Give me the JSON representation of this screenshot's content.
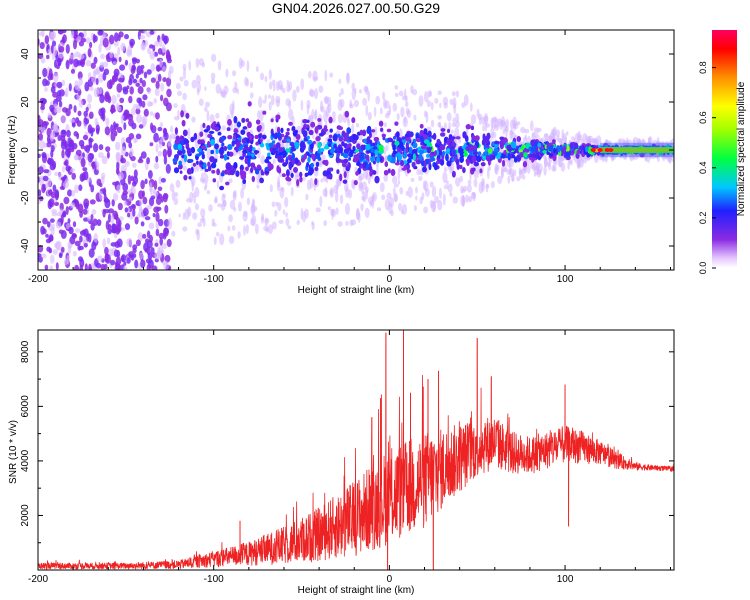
{
  "title": "GN04.2026.027.00.50.G29",
  "chart_data": [
    {
      "type": "heatmap",
      "name": "spectrogram",
      "xlabel": "Height of straight line (km)",
      "ylabel": "Frequency (Hz)",
      "xlim": [
        -200,
        162
      ],
      "ylim": [
        -50,
        50
      ],
      "xticks": [
        -200,
        -100,
        0,
        100
      ],
      "xtick_labels": [
        "-200",
        "-100",
        "0",
        "100"
      ],
      "yticks": [
        -40,
        -20,
        0,
        20,
        40
      ],
      "ytick_labels": [
        "-40",
        "-20",
        "0",
        "20",
        "40"
      ],
      "colorbar": {
        "label": "Normalized spectral amplitude",
        "range": [
          0,
          0.95
        ],
        "ticks": [
          0.0,
          0.2,
          0.4,
          0.6,
          0.8
        ],
        "tick_labels": [
          "0.0",
          "0.2",
          "0.4",
          "0.6",
          "0.8"
        ]
      },
      "band_profile": {
        "note": "approximate spread (Hz) of the signal band about 0 Hz vs height",
        "heights": [
          -120,
          -100,
          -80,
          -60,
          -40,
          -20,
          0,
          20,
          40,
          60,
          80,
          100,
          120,
          162
        ],
        "half_width_hz": [
          20,
          22,
          20,
          18,
          18,
          17,
          15,
          14,
          13,
          8,
          6,
          4,
          2,
          2
        ],
        "peak_amplitude": [
          0.3,
          0.35,
          0.35,
          0.4,
          0.45,
          0.45,
          0.5,
          0.55,
          0.55,
          0.6,
          0.75,
          0.75,
          0.9,
          0.9
        ]
      }
    },
    {
      "type": "line",
      "name": "snr",
      "xlabel": "Height of straight line (km)",
      "ylabel": "SNR (10 * v/v)",
      "xlim": [
        -200,
        162
      ],
      "ylim": [
        0,
        8800
      ],
      "xticks": [
        -200,
        -100,
        0,
        100
      ],
      "xtick_labels": [
        "-200",
        "-100",
        "0",
        "100"
      ],
      "yticks": [
        2000,
        4000,
        6000,
        8000
      ],
      "ytick_labels": [
        "2000",
        "4000",
        "6000",
        "8000"
      ],
      "color": "#ee2222",
      "envelope": {
        "x": [
          -200,
          -150,
          -120,
          -100,
          -80,
          -60,
          -40,
          -20,
          -10,
          0,
          10,
          20,
          30,
          40,
          50,
          60,
          70,
          80,
          90,
          100,
          110,
          120,
          130,
          140,
          150,
          162
        ],
        "mean": [
          150,
          150,
          200,
          400,
          600,
          900,
          1300,
          1900,
          2300,
          2700,
          3000,
          3300,
          3700,
          4100,
          4500,
          4700,
          4300,
          4200,
          4400,
          4600,
          4500,
          4300,
          4000,
          3800,
          3750,
          3700
        ],
        "spread": [
          120,
          120,
          160,
          300,
          450,
          700,
          1000,
          1400,
          1600,
          1800,
          1800,
          1800,
          1500,
          1300,
          1100,
          1000,
          800,
          700,
          700,
          700,
          600,
          450,
          300,
          150,
          100,
          100
        ]
      },
      "spikes": [
        {
          "x": -85,
          "y": 1800
        },
        {
          "x": -10,
          "y": 5600
        },
        {
          "x": -5,
          "y": 6300
        },
        {
          "x": -2,
          "y": 8700
        },
        {
          "x": 8,
          "y": 8800
        },
        {
          "x": 12,
          "y": 6500
        },
        {
          "x": 22,
          "y": 7000
        },
        {
          "x": 28,
          "y": 7300
        },
        {
          "x": 50,
          "y": 8500
        },
        {
          "x": 58,
          "y": 7100
        },
        {
          "x": 100,
          "y": 6800
        }
      ],
      "dips": [
        {
          "x": -1,
          "y": 0
        },
        {
          "x": 25,
          "y": 0
        },
        {
          "x": 102,
          "y": 1600
        }
      ]
    }
  ]
}
